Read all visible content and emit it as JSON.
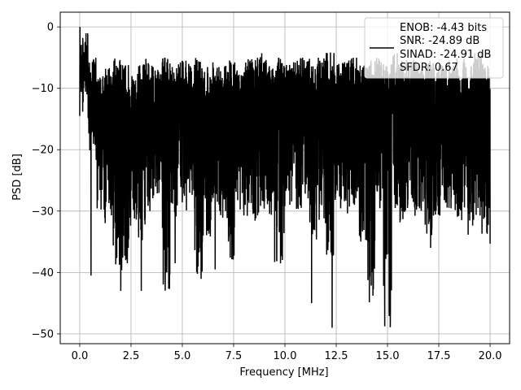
{
  "chart_data": {
    "type": "line",
    "title": "",
    "xlabel": "Frequency [MHz]",
    "ylabel": "PSD [dB]",
    "xlim": [
      -0.95,
      20.95
    ],
    "ylim": [
      -51.6,
      2.4
    ],
    "xticks": [
      0.0,
      2.5,
      5.0,
      7.5,
      10.0,
      12.5,
      15.0,
      17.5,
      20.0
    ],
    "xtick_labels": [
      "0.0",
      "2.5",
      "5.0",
      "7.5",
      "10.0",
      "12.5",
      "15.0",
      "17.5",
      "20.0"
    ],
    "yticks": [
      0,
      -10,
      -20,
      -30,
      -40,
      -50
    ],
    "ytick_labels": [
      "0",
      "−10",
      "−20",
      "−30",
      "−40",
      "−50"
    ],
    "grid": true,
    "legend_position": "top-right",
    "legend_lines": [
      "ENOB: -4.43 bits",
      "SNR: -24.89 dB",
      "SINAD: -24.91 dB",
      "SFDR: 0.67"
    ],
    "series": [
      {
        "color": "#000000",
        "x_start": 0.0,
        "x_end": 20.0,
        "upper_envelope": [
          -1,
          -5,
          -8,
          -6,
          -5,
          -6,
          -8,
          -6,
          -5,
          -7,
          -5,
          -6,
          -5,
          -6,
          -5,
          -6,
          -5,
          -6,
          -5,
          -7,
          -5,
          -5,
          -4,
          -6,
          -5,
          -6,
          -5,
          -5,
          -6,
          -5,
          -4,
          -6,
          -5,
          -5,
          -6,
          -5,
          -5,
          -6,
          -4,
          -5,
          -5,
          -6,
          -5,
          -5,
          -6,
          -5,
          -5,
          -6,
          -4,
          -6
        ],
        "lower_envelope": [
          -14,
          -23,
          -30,
          -32,
          -39,
          -40,
          -33,
          -35,
          -30,
          -28,
          -43,
          -31,
          -30,
          -30,
          -43,
          -35,
          -30,
          -32,
          -38,
          -30,
          -31,
          -32,
          -30,
          -32,
          -39,
          -30,
          -30,
          -29,
          -35,
          -32,
          -38,
          -30,
          -32,
          -30,
          -35,
          -45,
          -31,
          -49,
          -30,
          -32,
          -31,
          -30,
          -34,
          -31,
          -30,
          -30,
          -32,
          -34,
          -31,
          -35
        ],
        "notable_points": [
          {
            "x": 0.0,
            "y": 0.0
          },
          {
            "x": 0.55,
            "y": -40.5
          },
          {
            "x": 2.0,
            "y": -43.0
          },
          {
            "x": 3.0,
            "y": -43.0
          },
          {
            "x": 4.65,
            "y": -38.5
          },
          {
            "x": 6.6,
            "y": -39.5
          },
          {
            "x": 9.5,
            "y": -38.3
          },
          {
            "x": 11.3,
            "y": -45.0
          },
          {
            "x": 12.3,
            "y": -49.0
          },
          {
            "x": 17.1,
            "y": -36.0
          },
          {
            "x": 20.0,
            "y": -35.3
          }
        ]
      }
    ]
  }
}
